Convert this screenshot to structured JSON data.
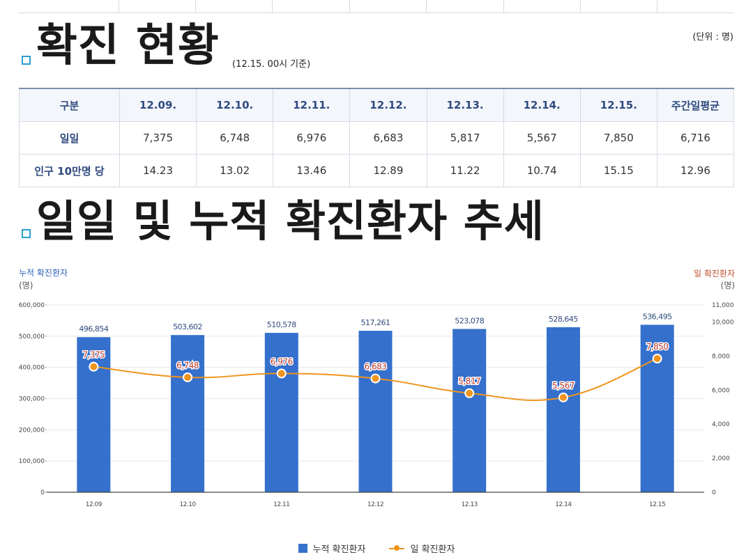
{
  "section1": {
    "title": "확진 현황",
    "basis": "(12.15. 00시 기준)",
    "unit": "(단위 : 명)"
  },
  "table": {
    "headers": [
      "구분",
      "12.09.",
      "12.10.",
      "12.11.",
      "12.12.",
      "12.13.",
      "12.14.",
      "12.15.",
      "주간일평균"
    ],
    "rows": [
      {
        "label": "일일",
        "values": [
          "7,375",
          "6,748",
          "6,976",
          "6,683",
          "5,817",
          "5,567",
          "7,850",
          "6,716"
        ]
      },
      {
        "label": "인구 10만명 당",
        "values": [
          "14.23",
          "13.02",
          "13.46",
          "12.89",
          "11.22",
          "10.74",
          "15.15",
          "12.96"
        ]
      }
    ]
  },
  "section2": {
    "title": "일일 및 누적 확진환자 추세"
  },
  "axes": {
    "left_title": "누적 확진환자",
    "left_unit": "(명)",
    "right_title": "일 확진환자",
    "right_unit": "(명)"
  },
  "legend": {
    "bar_label": "누적 확진환자",
    "line_label": "일 확진환자"
  },
  "colors": {
    "bar": "#3470cc",
    "line": "#f0941e",
    "bar_label": "#2f4a7e",
    "line_label": "#c0392b"
  },
  "chart_data": {
    "type": "bar",
    "categories": [
      "12.09",
      "12.10",
      "12.11",
      "12.12",
      "12.13",
      "12.14",
      "12.15"
    ],
    "series": [
      {
        "name": "누적 확진환자",
        "type": "bar",
        "axis": "left",
        "values": [
          496854,
          503602,
          510578,
          517261,
          523078,
          528645,
          536495
        ],
        "labels": [
          "496,854",
          "503,602",
          "510,578",
          "517,261",
          "523,078",
          "528,645",
          "536,495"
        ]
      },
      {
        "name": "일 확진환자",
        "type": "line",
        "axis": "right",
        "values": [
          7375,
          6748,
          6976,
          6683,
          5817,
          5567,
          7850
        ],
        "labels": [
          "7,375",
          "6,748",
          "6,976",
          "6,683",
          "5,817",
          "5,567",
          "7,850"
        ]
      }
    ],
    "y_left": {
      "range": [
        0,
        600000
      ],
      "ticks": [
        "0",
        "100,000",
        "200,000",
        "300,000",
        "400,000",
        "500,000",
        "600,000"
      ]
    },
    "y_right": {
      "range": [
        0,
        11000
      ],
      "ticks": [
        "0",
        "2,000",
        "4,000",
        "6,000",
        "8,000",
        "10,000",
        "11,000"
      ],
      "tick_values": [
        0,
        2000,
        4000,
        6000,
        8000,
        10000,
        11000
      ]
    },
    "grid": true,
    "legend_position": "bottom-center"
  }
}
